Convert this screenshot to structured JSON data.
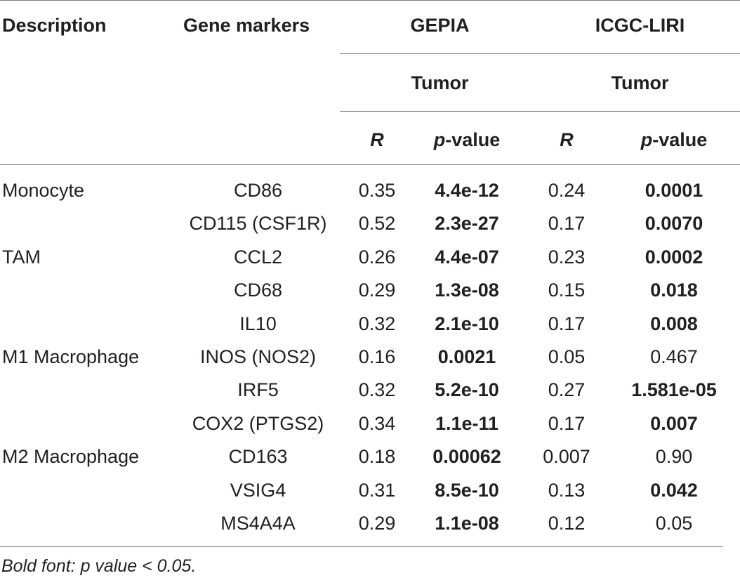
{
  "header": {
    "description": "Description",
    "gene_markers": "Gene markers",
    "dataset1": "GEPIA",
    "dataset2": "ICGC-LIRI",
    "tumor1": "Tumor",
    "tumor2": "Tumor",
    "r1": "R",
    "pvalue1_p": "p",
    "pvalue1_rest": "-value",
    "r2": "R",
    "pvalue2_p": "p",
    "pvalue2_rest": "-value"
  },
  "rows": [
    {
      "description": "Monocyte",
      "marker": "CD86",
      "gepia_r": "0.35",
      "gepia_p": "4.4e-12",
      "gepia_sig": true,
      "icgc_r": "0.24",
      "icgc_p": "0.0001",
      "icgc_sig": true
    },
    {
      "description": "",
      "marker": "CD115 (CSF1R)",
      "gepia_r": "0.52",
      "gepia_p": "2.3e-27",
      "gepia_sig": true,
      "icgc_r": "0.17",
      "icgc_p": "0.0070",
      "icgc_sig": true
    },
    {
      "description": "TAM",
      "marker": "CCL2",
      "gepia_r": "0.26",
      "gepia_p": "4.4e-07",
      "gepia_sig": true,
      "icgc_r": "0.23",
      "icgc_p": "0.0002",
      "icgc_sig": true
    },
    {
      "description": "",
      "marker": "CD68",
      "gepia_r": "0.29",
      "gepia_p": "1.3e-08",
      "gepia_sig": true,
      "icgc_r": "0.15",
      "icgc_p": "0.018",
      "icgc_sig": true
    },
    {
      "description": "",
      "marker": "IL10",
      "gepia_r": "0.32",
      "gepia_p": "2.1e-10",
      "gepia_sig": true,
      "icgc_r": "0.17",
      "icgc_p": "0.008",
      "icgc_sig": true
    },
    {
      "description": "M1 Macrophage",
      "marker": "INOS (NOS2)",
      "gepia_r": "0.16",
      "gepia_p": "0.0021",
      "gepia_sig": true,
      "icgc_r": "0.05",
      "icgc_p": "0.467",
      "icgc_sig": false
    },
    {
      "description": "",
      "marker": "IRF5",
      "gepia_r": "0.32",
      "gepia_p": "5.2e-10",
      "gepia_sig": true,
      "icgc_r": "0.27",
      "icgc_p": "1.581e-05",
      "icgc_sig": true
    },
    {
      "description": "",
      "marker": "COX2 (PTGS2)",
      "gepia_r": "0.34",
      "gepia_p": "1.1e-11",
      "gepia_sig": true,
      "icgc_r": "0.17",
      "icgc_p": "0.007",
      "icgc_sig": true
    },
    {
      "description": "M2 Macrophage",
      "marker": "CD163",
      "gepia_r": "0.18",
      "gepia_p": "0.00062",
      "gepia_sig": true,
      "icgc_r": "0.007",
      "icgc_p": "0.90",
      "icgc_sig": false
    },
    {
      "description": "",
      "marker": "VSIG4",
      "gepia_r": "0.31",
      "gepia_p": "8.5e-10",
      "gepia_sig": true,
      "icgc_r": "0.13",
      "icgc_p": "0.042",
      "icgc_sig": true
    },
    {
      "description": "",
      "marker": "MS4A4A",
      "gepia_r": "0.29",
      "gepia_p": "1.1e-08",
      "gepia_sig": true,
      "icgc_r": "0.12",
      "icgc_p": "0.05",
      "icgc_sig": false
    }
  ],
  "footnote": "Bold font: p value < 0.05."
}
